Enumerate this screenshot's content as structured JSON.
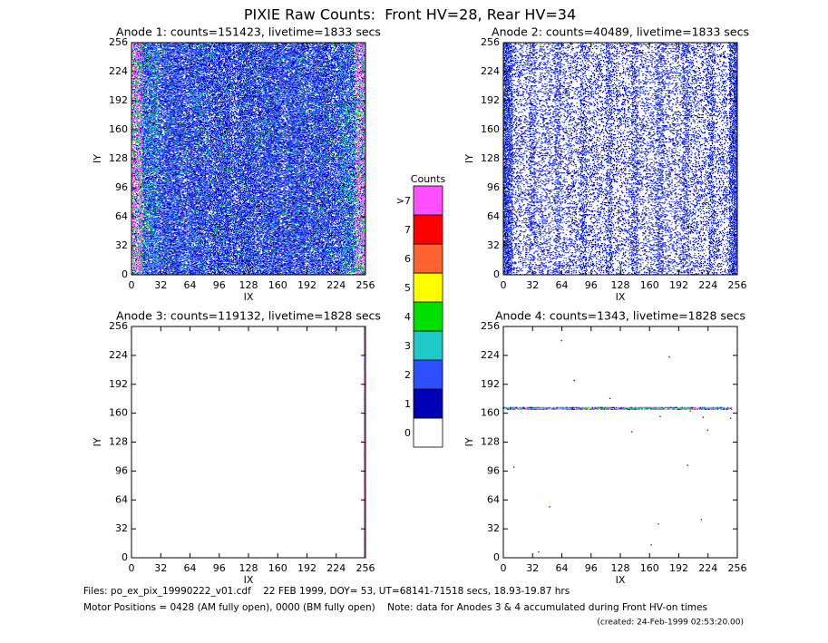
{
  "title": "PIXIE Raw Counts:  Front HV=28, Rear HV=34",
  "chart_data": [
    {
      "type": "heatmap",
      "title": "Anode 1: counts=151423, livetime=1833 secs",
      "x_label": "IX",
      "y_label": "IY",
      "xlim": [
        0,
        256
      ],
      "ylim": [
        0,
        256
      ],
      "xticks": [
        0,
        32,
        64,
        96,
        128,
        160,
        192,
        224,
        256
      ],
      "yticks": [
        0,
        32,
        64,
        96,
        128,
        160,
        192,
        224,
        256
      ]
    },
    {
      "type": "heatmap",
      "title": "Anode 2: counts=40489, livetime=1833 secs",
      "x_label": "IX",
      "y_label": "IY",
      "xlim": [
        0,
        256
      ],
      "ylim": [
        0,
        256
      ],
      "xticks": [
        0,
        32,
        64,
        96,
        128,
        160,
        192,
        224,
        256
      ],
      "yticks": [
        0,
        32,
        64,
        96,
        128,
        160,
        192,
        224,
        256
      ]
    },
    {
      "type": "heatmap",
      "title": "Anode 3: counts=119132, livetime=1828 secs",
      "x_label": "IX",
      "y_label": "IY",
      "xlim": [
        0,
        256
      ],
      "ylim": [
        0,
        256
      ],
      "xticks": [
        0,
        32,
        64,
        96,
        128,
        160,
        192,
        224,
        256
      ],
      "yticks": [
        0,
        32,
        64,
        96,
        128,
        160,
        192,
        224,
        256
      ]
    },
    {
      "type": "heatmap",
      "title": "Anode 4: counts=1343, livetime=1828 secs",
      "x_label": "IX",
      "y_label": "IY",
      "xlim": [
        0,
        256
      ],
      "ylim": [
        0,
        256
      ],
      "xticks": [
        0,
        32,
        64,
        96,
        128,
        160,
        192,
        224,
        256
      ],
      "yticks": [
        0,
        32,
        64,
        96,
        128,
        160,
        192,
        224,
        256
      ]
    }
  ],
  "colorbar": {
    "title": "Counts",
    "levels": [
      {
        "label": "0",
        "color": "#ffffff"
      },
      {
        "label": "1",
        "color": "#0000b4"
      },
      {
        "label": "2",
        "color": "#2c50ff"
      },
      {
        "label": "3",
        "color": "#20c8c8"
      },
      {
        "label": "4",
        "color": "#00e000"
      },
      {
        "label": "5",
        "color": "#ffff00"
      },
      {
        "label": "6",
        "color": "#ff6430"
      },
      {
        "label": "7",
        "color": "#ff0000"
      },
      {
        "label": ">7",
        "color": "#ff50ff"
      }
    ]
  },
  "footer": [
    "Files: po_ex_pix_19990222_v01.cdf    22 FEB 1999, DOY= 53, UT=68141-71518 secs, 18.93-19.87 hrs",
    "Motor Positions = 0428 (AM fully open), 0000 (BM fully open)    Note: data for Anodes 3 & 4 accumulated during Front HV-on times",
    "(created: 24-Feb-1999 02:53:20.00)"
  ]
}
